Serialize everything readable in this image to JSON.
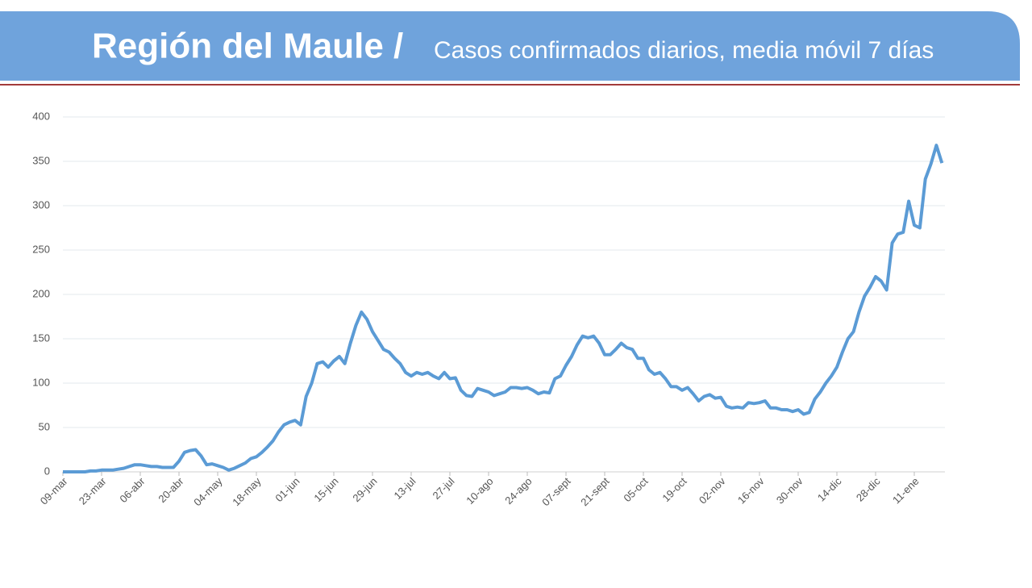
{
  "chart_data": {
    "type": "line",
    "title": "Región del Maule /",
    "subtitle": "Casos confirmados diarios, media móvil 7 días",
    "categories": [
      "09-mar",
      null,
      null,
      null,
      null,
      null,
      null,
      "23-mar",
      null,
      null,
      null,
      null,
      null,
      null,
      "06-abr",
      null,
      null,
      null,
      null,
      null,
      null,
      "20-abr",
      null,
      null,
      null,
      null,
      null,
      null,
      "04-may",
      null,
      null,
      null,
      null,
      null,
      null,
      "18-may",
      null,
      null,
      null,
      null,
      null,
      null,
      "01-jun",
      null,
      null,
      null,
      null,
      null,
      null,
      "15-jun",
      null,
      null,
      null,
      null,
      null,
      null,
      "29-jun",
      null,
      null,
      null,
      null,
      null,
      null,
      "13-jul",
      null,
      null,
      null,
      null,
      null,
      null,
      "27-jul",
      null,
      null,
      null,
      null,
      null,
      null,
      "10-ago",
      null,
      null,
      null,
      null,
      null,
      null,
      "24-ago",
      null,
      null,
      null,
      null,
      null,
      null,
      "07-sept",
      null,
      null,
      null,
      null,
      null,
      null,
      "21-sept",
      null,
      null,
      null,
      null,
      null,
      null,
      "05-oct",
      null,
      null,
      null,
      null,
      null,
      null,
      "19-oct",
      null,
      null,
      null,
      null,
      null,
      null,
      "02-nov",
      null,
      null,
      null,
      null,
      null,
      null,
      "16-nov",
      null,
      null,
      null,
      null,
      null,
      null,
      "30-nov",
      null,
      null,
      null,
      null,
      null,
      null,
      "14-dic",
      null,
      null,
      null,
      null,
      null,
      null,
      "28-dic",
      null,
      null,
      null,
      null,
      null,
      null,
      "11-ene",
      null,
      null,
      null,
      null,
      null
    ],
    "values": [
      0,
      0,
      0,
      0,
      0,
      1,
      1,
      2,
      2,
      2,
      3,
      4,
      6,
      8,
      8,
      7,
      6,
      6,
      5,
      5,
      5,
      12,
      22,
      24,
      25,
      18,
      8,
      9,
      7,
      5,
      2,
      4,
      7,
      10,
      15,
      17,
      22,
      28,
      35,
      45,
      53,
      56,
      58,
      53,
      85,
      100,
      122,
      124,
      118,
      125,
      130,
      122,
      145,
      165,
      180,
      172,
      158,
      148,
      138,
      135,
      128,
      122,
      112,
      108,
      112,
      110,
      112,
      108,
      105,
      112,
      105,
      106,
      92,
      86,
      85,
      94,
      92,
      90,
      86,
      88,
      90,
      95,
      95,
      94,
      95,
      92,
      88,
      90,
      89,
      105,
      108,
      120,
      130,
      143,
      153,
      151,
      153,
      145,
      132,
      132,
      138,
      145,
      140,
      138,
      128,
      128,
      115,
      110,
      112,
      105,
      96,
      96,
      92,
      95,
      88,
      80,
      85,
      87,
      83,
      84,
      74,
      72,
      73,
      72,
      78,
      77,
      78,
      80,
      72,
      72,
      70,
      70,
      68,
      70,
      65,
      67,
      82,
      90,
      100,
      108,
      118,
      135,
      150,
      158,
      180,
      198,
      208,
      220,
      215,
      205,
      258,
      268,
      270,
      305,
      278,
      275,
      330,
      347,
      368,
      348
    ],
    "color": "#5b9bd5",
    "ylim": [
      0,
      400
    ],
    "yticks": [
      0,
      50,
      100,
      150,
      200,
      250,
      300,
      350,
      400
    ],
    "grid": true
  }
}
